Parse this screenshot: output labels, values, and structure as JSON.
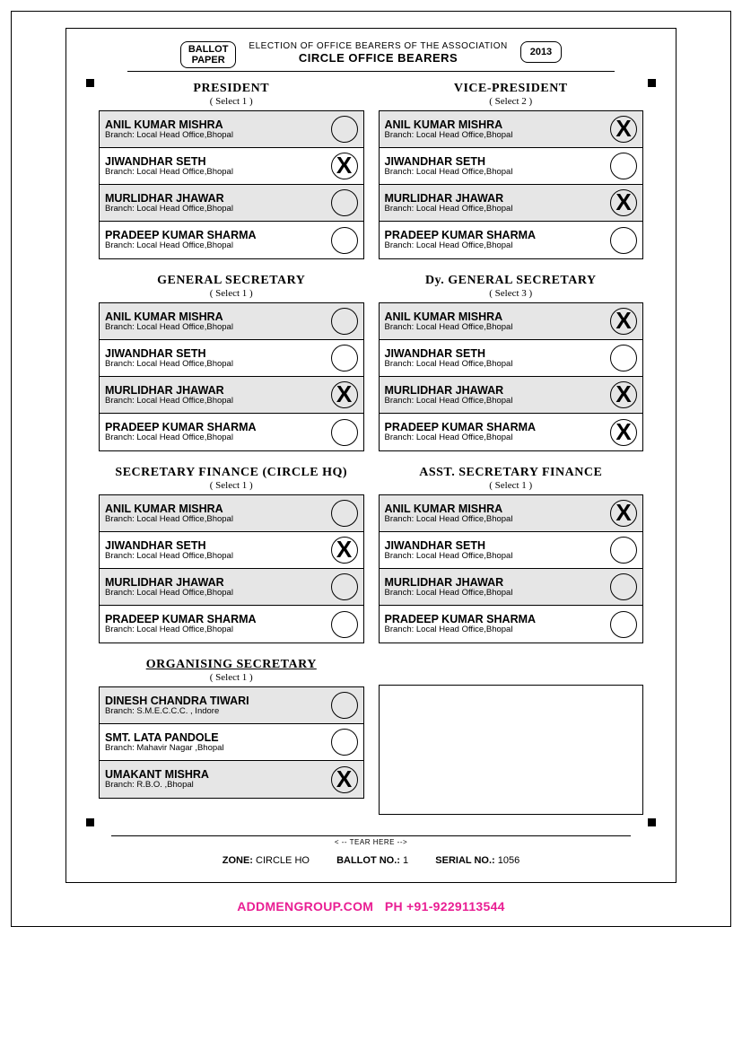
{
  "header": {
    "ballot_label_l1": "BALLOT",
    "ballot_label_l2": "PAPER",
    "line1": "ELECTION OF OFFICE BEARERS OF THE ASSOCIATION",
    "line2": "CIRCLE OFFICE BEARERS",
    "year": "2013"
  },
  "sections": [
    {
      "title": "PRESIDENT",
      "select": "( Select 1 )",
      "underline": false,
      "candidates": [
        {
          "name": "ANIL KUMAR MISHRA",
          "branch": "Branch: Local Head Office,Bhopal",
          "shade": true,
          "marked": false
        },
        {
          "name": "JIWANDHAR SETH",
          "branch": "Branch: Local Head Office,Bhopal",
          "shade": false,
          "marked": true
        },
        {
          "name": "MURLIDHAR JHAWAR",
          "branch": "Branch: Local Head Office,Bhopal",
          "shade": true,
          "marked": false
        },
        {
          "name": "PRADEEP KUMAR SHARMA",
          "branch": "Branch: Local Head Office,Bhopal",
          "shade": false,
          "marked": false
        }
      ]
    },
    {
      "title": "VICE-PRESIDENT",
      "select": "( Select 2 )",
      "underline": false,
      "candidates": [
        {
          "name": "ANIL KUMAR MISHRA",
          "branch": "Branch: Local Head Office,Bhopal",
          "shade": true,
          "marked": true
        },
        {
          "name": "JIWANDHAR SETH",
          "branch": "Branch: Local Head Office,Bhopal",
          "shade": false,
          "marked": false
        },
        {
          "name": "MURLIDHAR JHAWAR",
          "branch": "Branch: Local Head Office,Bhopal",
          "shade": true,
          "marked": true
        },
        {
          "name": "PRADEEP KUMAR SHARMA",
          "branch": "Branch: Local Head Office,Bhopal",
          "shade": false,
          "marked": false
        }
      ]
    },
    {
      "title": "GENERAL SECRETARY",
      "select": "( Select 1 )",
      "underline": false,
      "candidates": [
        {
          "name": "ANIL KUMAR MISHRA",
          "branch": "Branch: Local Head Office,Bhopal",
          "shade": true,
          "marked": false
        },
        {
          "name": "JIWANDHAR SETH",
          "branch": "Branch: Local Head Office,Bhopal",
          "shade": false,
          "marked": false
        },
        {
          "name": "MURLIDHAR JHAWAR",
          "branch": "Branch: Local Head Office,Bhopal",
          "shade": true,
          "marked": true
        },
        {
          "name": "PRADEEP KUMAR SHARMA",
          "branch": "Branch: Local Head Office,Bhopal",
          "shade": false,
          "marked": false
        }
      ]
    },
    {
      "title": "Dy. GENERAL SECRETARY",
      "select": "( Select 3 )",
      "underline": false,
      "candidates": [
        {
          "name": "ANIL KUMAR MISHRA",
          "branch": "Branch: Local Head Office,Bhopal",
          "shade": true,
          "marked": true
        },
        {
          "name": "JIWANDHAR SETH",
          "branch": "Branch: Local Head Office,Bhopal",
          "shade": false,
          "marked": false
        },
        {
          "name": "MURLIDHAR JHAWAR",
          "branch": "Branch: Local Head Office,Bhopal",
          "shade": true,
          "marked": true
        },
        {
          "name": "PRADEEP KUMAR SHARMA",
          "branch": "Branch: Local Head Office,Bhopal",
          "shade": false,
          "marked": true
        }
      ]
    },
    {
      "title": "SECRETARY FINANCE (CIRCLE HQ)",
      "select": "( Select 1 )",
      "underline": false,
      "candidates": [
        {
          "name": "ANIL KUMAR MISHRA",
          "branch": "Branch: Local Head Office,Bhopal",
          "shade": true,
          "marked": false
        },
        {
          "name": "JIWANDHAR SETH",
          "branch": "Branch: Local Head Office,Bhopal",
          "shade": false,
          "marked": true
        },
        {
          "name": "MURLIDHAR JHAWAR",
          "branch": "Branch: Local Head Office,Bhopal",
          "shade": true,
          "marked": false
        },
        {
          "name": "PRADEEP KUMAR SHARMA",
          "branch": "Branch: Local Head Office,Bhopal",
          "shade": false,
          "marked": false
        }
      ]
    },
    {
      "title": "ASST. SECRETARY FINANCE",
      "select": "( Select 1 )",
      "underline": false,
      "candidates": [
        {
          "name": "ANIL KUMAR MISHRA",
          "branch": "Branch: Local Head Office,Bhopal",
          "shade": true,
          "marked": true
        },
        {
          "name": "JIWANDHAR SETH",
          "branch": "Branch: Local Head Office,Bhopal",
          "shade": false,
          "marked": false
        },
        {
          "name": "MURLIDHAR JHAWAR",
          "branch": "Branch: Local Head Office,Bhopal",
          "shade": true,
          "marked": false
        },
        {
          "name": "PRADEEP KUMAR SHARMA",
          "branch": "Branch: Local Head Office,Bhopal",
          "shade": false,
          "marked": false
        }
      ]
    },
    {
      "title": "ORGANISING SECRETARY",
      "select": "( Select 1 )",
      "underline": true,
      "candidates": [
        {
          "name": "DINESH CHANDRA TIWARI",
          "branch": "Branch: S.M.E.C.C.C. , Indore",
          "shade": true,
          "marked": false
        },
        {
          "name": "SMT. LATA PANDOLE",
          "branch": "Branch: Mahavir Nagar ,Bhopal",
          "shade": false,
          "marked": false
        },
        {
          "name": "UMAKANT MISHRA",
          "branch": "Branch: R.B.O. ,Bhopal",
          "shade": true,
          "marked": true
        }
      ]
    },
    {
      "empty": true
    }
  ],
  "tear": "< -- TEAR HERE -->",
  "meta": {
    "zone_lbl": "ZONE:",
    "zone": "CIRCLE HO",
    "ballot_lbl": "BALLOT NO.:",
    "ballot": "1",
    "serial_lbl": "SERIAL NO.:",
    "serial": "1056"
  },
  "footer": "ADDMENGROUP.COM   PH +91-9229113544",
  "colors": {
    "shade": "#e6e6e6",
    "accent": "#e91e93"
  }
}
